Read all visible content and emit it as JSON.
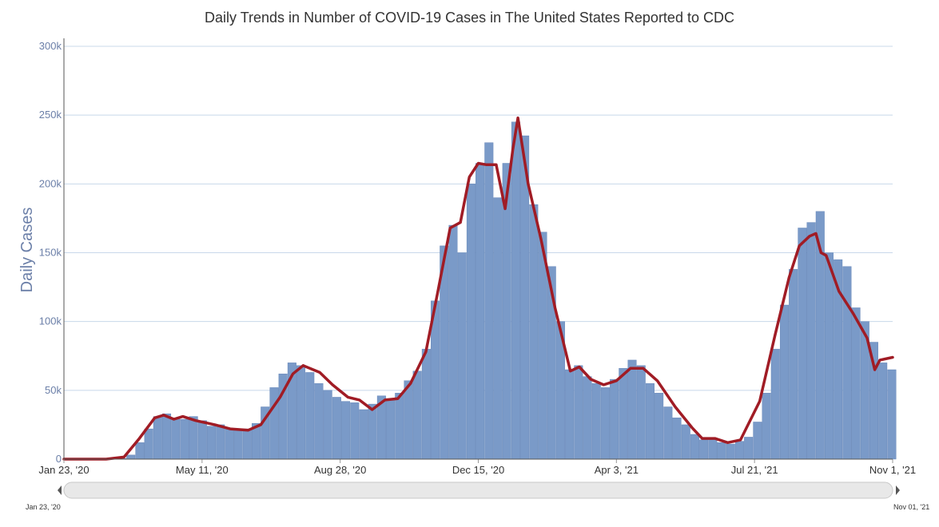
{
  "chart_data": {
    "type": "bar",
    "title": "Daily Trends in Number of COVID-19 Cases in The United States Reported to CDC",
    "ylabel": "Daily Cases",
    "xlabel": "",
    "ylim": [
      0,
      300000
    ],
    "y_ticks": [
      "0",
      "50k",
      "100k",
      "150k",
      "200k",
      "250k",
      "300k"
    ],
    "x_ticks": [
      "Jan 23, '20",
      "May 11, '20",
      "Aug 28, '20",
      "Dec 15, '20",
      "Apr 3, '21",
      "Jul 21, '21",
      "Nov 1, '21"
    ],
    "x_range": [
      "2020-01-23",
      "2021-11-01"
    ],
    "grid": true,
    "navigator": {
      "start_label": "Jan 23, '20",
      "end_label": "Nov 01, '21"
    },
    "colors": {
      "bars": "#7a9ac8",
      "average": "#a01c25",
      "grid": "#c8d8ea",
      "axis": "#6b7fa8"
    },
    "series": [
      {
        "type": "bar",
        "sample_interval_days": 7,
        "x": [
          "2020-01-23",
          "2020-01-30",
          "2020-02-06",
          "2020-02-13",
          "2020-02-20",
          "2020-02-27",
          "2020-03-05",
          "2020-03-12",
          "2020-03-19",
          "2020-03-26",
          "2020-04-02",
          "2020-04-09",
          "2020-04-16",
          "2020-04-23",
          "2020-04-30",
          "2020-05-07",
          "2020-05-14",
          "2020-05-21",
          "2020-05-28",
          "2020-06-04",
          "2020-06-11",
          "2020-06-18",
          "2020-06-25",
          "2020-07-02",
          "2020-07-09",
          "2020-07-16",
          "2020-07-23",
          "2020-07-30",
          "2020-08-06",
          "2020-08-13",
          "2020-08-20",
          "2020-08-27",
          "2020-09-03",
          "2020-09-10",
          "2020-09-17",
          "2020-09-24",
          "2020-10-01",
          "2020-10-08",
          "2020-10-15",
          "2020-10-22",
          "2020-10-29",
          "2020-11-05",
          "2020-11-12",
          "2020-11-19",
          "2020-11-26",
          "2020-12-03",
          "2020-12-10",
          "2020-12-17",
          "2020-12-24",
          "2020-12-31",
          "2021-01-07",
          "2021-01-14",
          "2021-01-21",
          "2021-01-28",
          "2021-02-04",
          "2021-02-11",
          "2021-02-18",
          "2021-02-25",
          "2021-03-04",
          "2021-03-11",
          "2021-03-18",
          "2021-03-25",
          "2021-04-01",
          "2021-04-08",
          "2021-04-15",
          "2021-04-22",
          "2021-04-29",
          "2021-05-06",
          "2021-05-13",
          "2021-05-20",
          "2021-05-27",
          "2021-06-03",
          "2021-06-10",
          "2021-06-17",
          "2021-06-24",
          "2021-07-01",
          "2021-07-08",
          "2021-07-15",
          "2021-07-22",
          "2021-07-29",
          "2021-08-05",
          "2021-08-12",
          "2021-08-19",
          "2021-08-26",
          "2021-09-02",
          "2021-09-09",
          "2021-09-16",
          "2021-09-23",
          "2021-09-30",
          "2021-10-07",
          "2021-10-14",
          "2021-10-21",
          "2021-10-28"
        ],
        "values": [
          0,
          0,
          0,
          0,
          0,
          0,
          500,
          3000,
          12000,
          22000,
          31000,
          33000,
          30000,
          29000,
          31000,
          28000,
          24000,
          25000,
          22000,
          21000,
          22000,
          26000,
          38000,
          52000,
          62000,
          70000,
          68000,
          63000,
          55000,
          50000,
          45000,
          42000,
          41000,
          36000,
          40000,
          46000,
          44000,
          48000,
          57000,
          64000,
          80000,
          115000,
          155000,
          170000,
          150000,
          200000,
          215000,
          230000,
          190000,
          215000,
          245000,
          235000,
          185000,
          165000,
          140000,
          100000,
          65000,
          68000,
          60000,
          55000,
          52000,
          58000,
          66000,
          72000,
          68000,
          55000,
          48000,
          38000,
          30000,
          25000,
          18000,
          14000,
          15000,
          12000,
          11000,
          13000,
          16000,
          27000,
          48000,
          80000,
          112000,
          138000,
          168000,
          172000,
          180000,
          150000,
          145000,
          140000,
          110000,
          100000,
          85000,
          70000,
          65000
        ]
      },
      {
        "type": "line",
        "name": "",
        "x": [
          "2020-01-23",
          "2020-02-25",
          "2020-03-10",
          "2020-03-22",
          "2020-04-03",
          "2020-04-10",
          "2020-04-18",
          "2020-04-25",
          "2020-05-05",
          "2020-05-20",
          "2020-06-01",
          "2020-06-15",
          "2020-06-25",
          "2020-07-10",
          "2020-07-20",
          "2020-07-28",
          "2020-08-10",
          "2020-08-20",
          "2020-09-01",
          "2020-09-10",
          "2020-09-20",
          "2020-09-30",
          "2020-10-10",
          "2020-10-20",
          "2020-11-01",
          "2020-11-10",
          "2020-11-20",
          "2020-11-28",
          "2020-12-05",
          "2020-12-12",
          "2020-12-18",
          "2020-12-26",
          "2021-01-02",
          "2021-01-08",
          "2021-01-12",
          "2021-01-20",
          "2021-01-30",
          "2021-02-10",
          "2021-02-22",
          "2021-03-01",
          "2021-03-10",
          "2021-03-20",
          "2021-03-30",
          "2021-04-10",
          "2021-04-20",
          "2021-05-01",
          "2021-05-15",
          "2021-05-28",
          "2021-06-05",
          "2021-06-15",
          "2021-06-25",
          "2021-07-05",
          "2021-07-20",
          "2021-08-01",
          "2021-08-12",
          "2021-08-20",
          "2021-08-28",
          "2021-09-02",
          "2021-09-06",
          "2021-09-10",
          "2021-09-20",
          "2021-10-01",
          "2021-10-12",
          "2021-10-18",
          "2021-10-22",
          "2021-11-01"
        ],
        "values": [
          0,
          0,
          1500,
          15000,
          30000,
          32000,
          29000,
          31000,
          28000,
          25000,
          22000,
          21000,
          25000,
          45000,
          62000,
          68000,
          63000,
          54000,
          45000,
          43000,
          36000,
          43000,
          44000,
          55000,
          78000,
          120000,
          168000,
          172000,
          205000,
          215000,
          214000,
          214000,
          182000,
          225000,
          248000,
          200000,
          160000,
          110000,
          64000,
          67000,
          58000,
          54000,
          57000,
          66000,
          66000,
          57000,
          38000,
          23000,
          15000,
          15000,
          12000,
          14000,
          42000,
          90000,
          132000,
          155000,
          162000,
          164000,
          150000,
          148000,
          122000,
          106000,
          88000,
          65000,
          72000,
          74000
        ]
      }
    ]
  }
}
